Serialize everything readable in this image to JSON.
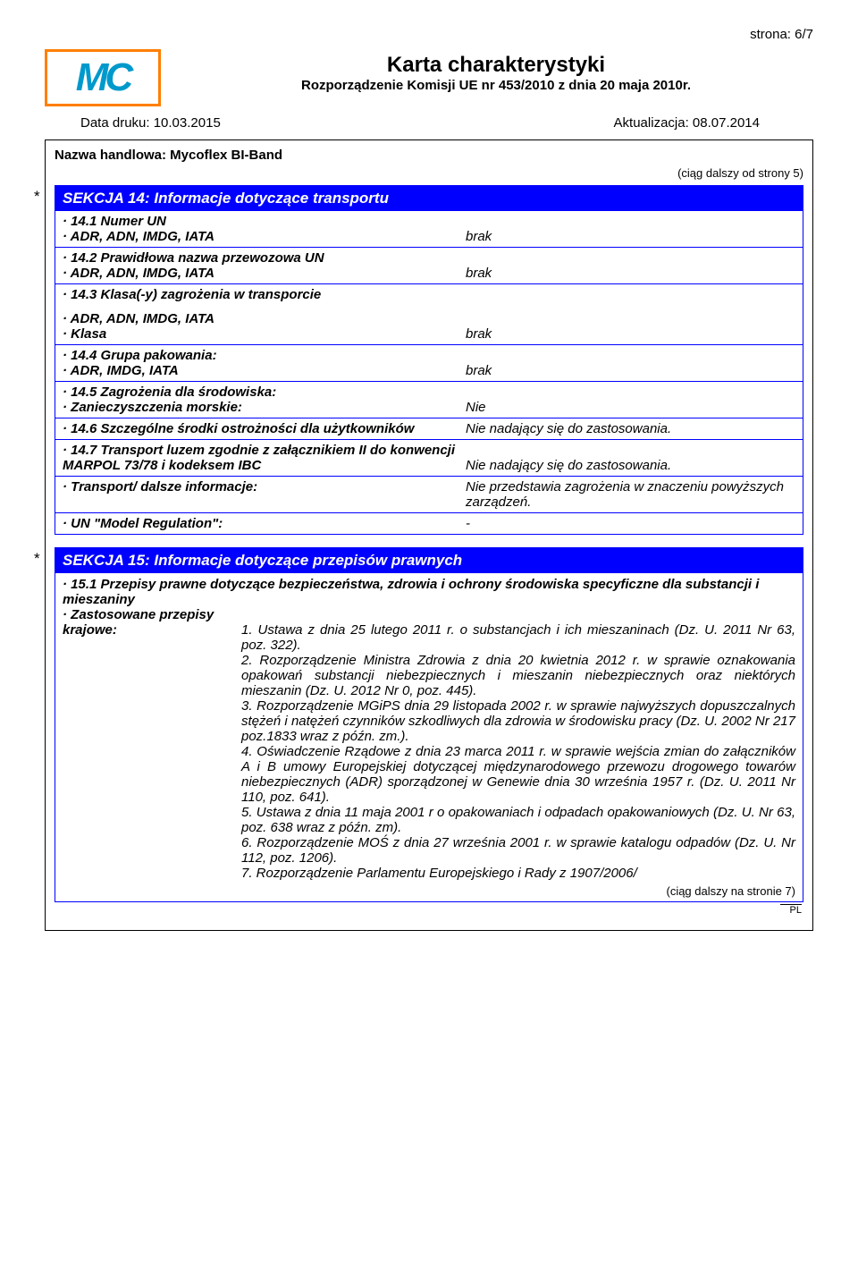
{
  "page_number": "strona: 6/7",
  "logo_text": "MC",
  "title_main": "Karta charakterystyki",
  "title_sub": "Rozporządzenie Komisji UE nr 453/2010 z dnia 20 maja 2010r.",
  "date_print_label": "Data druku: 10.03.2015",
  "date_update_label": "Aktualizacja: 08.07.2014",
  "product_name": "Nazwa handlowa: Mycoflex BI-Band",
  "cont_from": "(ciąg dalszy od strony 5)",
  "section14": {
    "title": "SEKCJA 14: Informacje dotyczące transportu",
    "rows": [
      {
        "left": [
          {
            "text": "14.1 Numer UN",
            "bi": true,
            "dot": true
          },
          {
            "text": "ADR, ADN, IMDG, IATA",
            "bi": true,
            "dot": true
          }
        ],
        "right": "brak"
      },
      {
        "left": [
          {
            "text": "14.2 Prawidłowa nazwa przewozowa UN",
            "bi": true,
            "dot": true
          },
          {
            "text": "ADR, ADN, IMDG, IATA",
            "bi": true,
            "dot": true
          }
        ],
        "right": "brak"
      },
      {
        "left": [
          {
            "text": "14.3 Klasa(-y) zagrożenia w transporcie",
            "bi": true,
            "dot": true
          },
          {
            "text": "ADR, ADN, IMDG, IATA",
            "bi": true,
            "dot": true
          },
          {
            "text": "Klasa",
            "bi": true,
            "dot": true
          }
        ],
        "right": "brak",
        "spacer": true
      },
      {
        "left": [
          {
            "text": "14.4 Grupa pakowania:",
            "bi": true,
            "dot": true
          },
          {
            "text": "ADR, IMDG, IATA",
            "bi": true,
            "dot": true
          }
        ],
        "right": "brak"
      },
      {
        "left": [
          {
            "text": "14.5 Zagrożenia dla środowiska:",
            "bi": true,
            "dot": true
          },
          {
            "text": "Zanieczyszczenia morskie:",
            "bi": true,
            "dot": true
          }
        ],
        "right": "Nie"
      },
      {
        "left": [
          {
            "text": "14.6 Szczególne środki ostrożności dla użytkowników",
            "bi": true,
            "dot": true
          }
        ],
        "right": "Nie nadający się do zastosowania."
      },
      {
        "left": [
          {
            "text": "14.7 Transport luzem zgodnie z załącznikiem II do konwencji MARPOL 73/78 i kodeksem IBC",
            "bi": true,
            "dot": true
          }
        ],
        "right": "Nie nadający się do zastosowania."
      },
      {
        "left": [
          {
            "text": "Transport/ dalsze informacje:",
            "bi": true,
            "dot": true
          }
        ],
        "right": "Nie przedstawia zagrożenia w znaczeniu powyższych zarządzeń."
      },
      {
        "left": [
          {
            "text": "UN \"Model Regulation\":",
            "bi": true,
            "dot": true
          }
        ],
        "right": "-"
      }
    ]
  },
  "section15": {
    "title": "SEKCJA 15: Informacje dotyczące przepisów prawnych",
    "heading": "15.1 Przepisy prawne dotyczące bezpieczeństwa, zdrowia i ochrony środowiska specyficzne dla substancji i mieszaniny",
    "applied_label": "Zastosowane przepisy krajowe:",
    "krajowe_label": "krajowe:",
    "regs": [
      "1. Ustawa z dnia 25 lutego 2011 r. o substancjach i ich mieszaninach (Dz. U. 2011 Nr 63, poz. 322).",
      "2. Rozporządzenie Ministra Zdrowia z dnia 20 kwietnia 2012 r. w sprawie oznakowania opakowań substancji niebezpiecznych i mieszanin niebezpiecznych oraz niektórych mieszanin (Dz. U. 2012 Nr 0, poz. 445).",
      "3. Rozporządzenie MGiPS dnia 29 listopada 2002 r. w sprawie najwyższych dopuszczalnych stężeń i natężeń czynników szkodliwych dla zdrowia w środowisku pracy (Dz. U. 2002 Nr 217 poz.1833 wraz z późn. zm.).",
      "4. Oświadczenie Rządowe z dnia 23 marca 2011 r. w sprawie wejścia zmian do załączników A i B umowy Europejskiej dotyczącej międzynarodowego przewozu drogowego towarów niebezpiecznych (ADR) sporządzonej w Genewie dnia 30 września 1957 r. (Dz. U. 2011 Nr 110, poz. 641).",
      "5. Ustawa z dnia 11 maja 2001 r o opakowaniach i odpadach opakowaniowych (Dz. U. Nr 63, poz. 638 wraz z późn. zm).",
      "6. Rozporządzenie MOŚ z dnia 27 września 2001 r. w sprawie katalogu odpadów (Dz. U. Nr 112, poz. 1206).",
      "7. Rozporządzenie Parlamentu Europejskiego i Rady z 1907/2006/"
    ]
  },
  "cont_next": "(ciąg dalszy na stronie 7)",
  "pl_mark": "PL",
  "colors": {
    "section_bg": "#0000ff",
    "section_border": "#0000ff",
    "logo_border": "#ff7f00",
    "logo_text": "#0099cc"
  }
}
